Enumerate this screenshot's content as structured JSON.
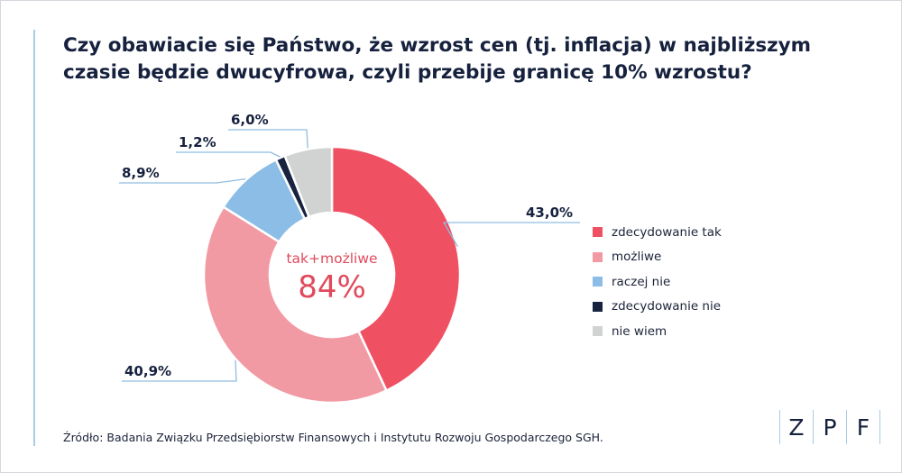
{
  "title_lines": [
    "Czy obawiacie się Państwo, że wzrost cen (tj. inflacja) w najbliższym",
    "czasie będzie dwucyfrowa, czyli przebije granicę 10% wzrostu?"
  ],
  "center_label": "tak+możliwe",
  "center_value": "84%",
  "source": "Źródło: Badania Związku Przedsiębiorstw Finansowych i Instytutu Rozwoju Gospodarczego SGH.",
  "logo": {
    "letters": [
      "Z",
      "P",
      "F"
    ]
  },
  "colors": {
    "text": "#16213e",
    "center_label": "#e04a5c",
    "leader": "#8fbde0",
    "accent": "#a8cbe6"
  },
  "chart_data": {
    "type": "pie",
    "style": "donut",
    "title": "Czy obawiacie się Państwo, że wzrost cen (tj. inflacja) w najbliższym czasie będzie dwucyfrowa, czyli przebije granicę 10% wzrostu?",
    "unit": "%",
    "legend_position": "right",
    "slices": [
      {
        "name": "zdecydowanie tak",
        "value": 43.0,
        "label": "43,0%",
        "color": "#ef5163"
      },
      {
        "name": "możliwe",
        "value": 40.9,
        "label": "40,9%",
        "color": "#f29aa3"
      },
      {
        "name": "raczej nie",
        "value": 8.9,
        "label": "8,9%",
        "color": "#8bbde6"
      },
      {
        "name": "zdecydowanie nie",
        "value": 1.2,
        "label": "1,2%",
        "color": "#182340"
      },
      {
        "name": "nie wiem",
        "value": 6.0,
        "label": "6,0%",
        "color": "#d1d3d3"
      }
    ]
  }
}
